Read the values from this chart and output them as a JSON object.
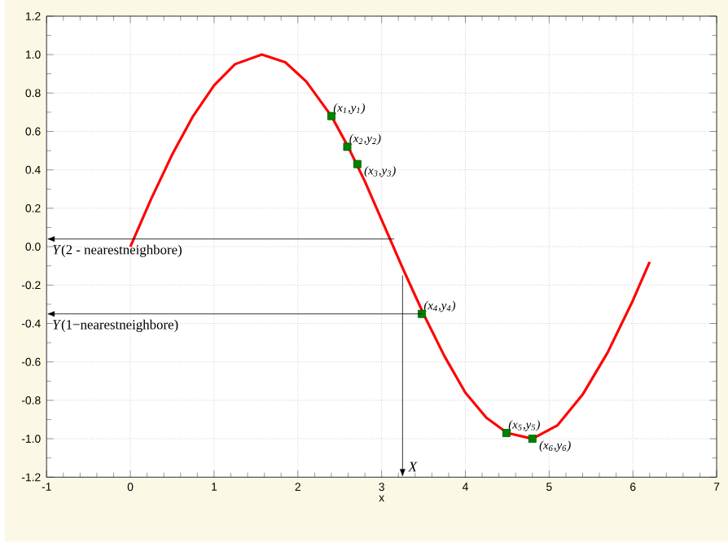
{
  "chart_data": {
    "type": "line",
    "xlabel": "x",
    "xlim": [
      -1,
      7
    ],
    "ylim": [
      -1.2,
      1.2
    ],
    "xticks": [
      -1,
      0,
      1,
      2,
      3,
      4,
      5,
      6,
      7
    ],
    "yticks": [
      {
        "value": -1.2,
        "label": "-1.2"
      },
      {
        "value": -1.0,
        "label": "-1.0"
      },
      {
        "value": -0.8,
        "label": "-0.8"
      },
      {
        "value": -0.6,
        "label": "-0.6"
      },
      {
        "value": -0.4,
        "label": "-0.4"
      },
      {
        "value": -0.2,
        "label": "-0.2"
      },
      {
        "value": 0,
        "label": "0.0"
      },
      {
        "value": 0.2,
        "label": "0.2"
      },
      {
        "value": 0.4,
        "label": "0.4"
      },
      {
        "value": 0.6,
        "label": "0.6"
      },
      {
        "value": 0.8,
        "label": "0.8"
      },
      {
        "value": 1.0,
        "label": "1.0"
      },
      {
        "value": 1.2,
        "label": "1.2"
      }
    ],
    "grid": true,
    "series": [
      {
        "color": "#ff0000",
        "x": [
          0,
          0.25,
          0.5,
          0.75,
          1,
          1.25,
          1.57,
          1.85,
          2.1,
          2.4,
          2.6,
          2.8,
          3,
          3.25,
          3.5,
          3.75,
          4,
          4.25,
          4.5,
          4.8,
          5.1,
          5.4,
          5.7,
          6,
          6.2
        ],
        "values": [
          0,
          0.25,
          0.48,
          0.68,
          0.84,
          0.95,
          1.0,
          0.96,
          0.86,
          0.68,
          0.52,
          0.34,
          0.14,
          -0.11,
          -0.35,
          -0.57,
          -0.76,
          -0.89,
          -0.97,
          -1.0,
          -0.93,
          -0.77,
          -0.55,
          -0.28,
          -0.08
        ]
      },
      {
        "type": "scatter",
        "color": "#008000",
        "marker": "square",
        "x": [
          2.4,
          2.59,
          2.71,
          3.48,
          4.49,
          4.8
        ],
        "values": [
          0.68,
          0.52,
          0.43,
          -0.35,
          -0.97,
          -1.0
        ],
        "value_labels": [
          "*(x$_{1}$,y$_{1}$)*",
          "*(x$_{2}$,y$_{2}$)*",
          "*(x$_{3}$,y$_{3}$)*",
          "*(x$_{4}$,y$_{4}$)*",
          "*(x$_{5}$,y$_{5}$)*",
          "*(x$_{6}$,y$_{6}$)*"
        ]
      }
    ],
    "annotations": [
      {
        "text": "*Y*(2 - nearestneighbore)",
        "x": 3.15,
        "y": 0.04
      },
      {
        "text": "*Y*(1−nearestneighbore)",
        "x": 3.48,
        "y": -0.35
      }
    ],
    "ref_lines": [
      {
        "axis": "x",
        "value": 3.25,
        "label": "*X*"
      }
    ]
  }
}
